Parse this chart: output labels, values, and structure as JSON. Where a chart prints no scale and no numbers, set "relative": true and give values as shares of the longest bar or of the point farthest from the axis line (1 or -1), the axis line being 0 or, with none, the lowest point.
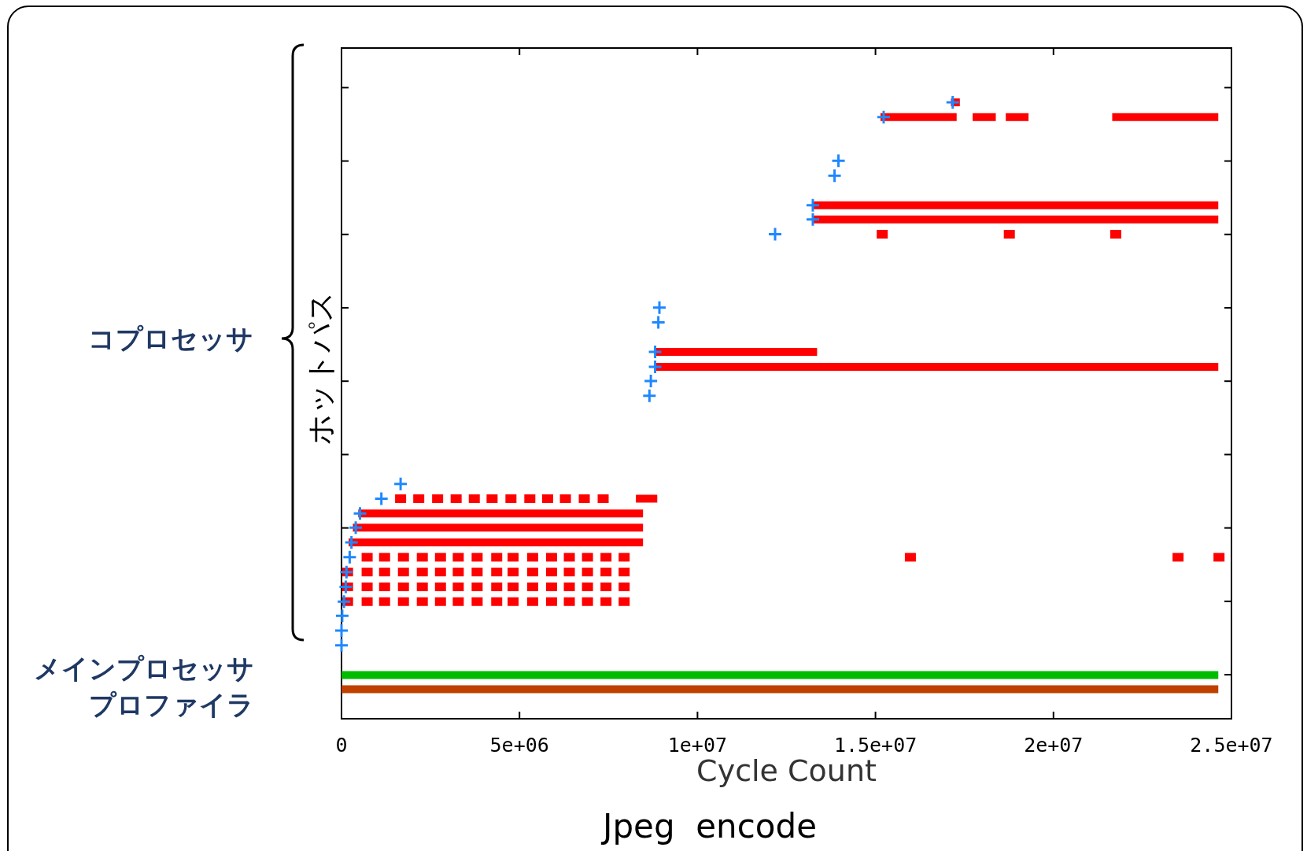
{
  "chart_data": {
    "type": "scatter",
    "xlabel": "Cycle Count",
    "ylabel": "ホットパス",
    "relative": true,
    "xlim": [
      0,
      25000000
    ],
    "xticks": [
      0,
      {
        "value": 5000000,
        "label": "5e+06"
      },
      {
        "value": 10000000,
        "label": "1e+07"
      },
      {
        "value": 15000000,
        "label": "1.5e+07"
      },
      {
        "value": 20000000,
        "label": "2e+07"
      },
      {
        "value": 25000000,
        "label": "2.5e+07"
      }
    ],
    "tick_labels": "x",
    "series": [
      {
        "type": "line",
        "color": "#00bb00",
        "x": [
          0,
          24630000
        ],
        "values": [
          0.071,
          0.071
        ]
      },
      {
        "type": "line",
        "color": "#c04000",
        "x": [
          0,
          24630000
        ],
        "values": [
          0.048,
          0.048
        ]
      },
      {
        "type": "line",
        "color": "#ff0000",
        "x": [
          200000,
          8470000
        ],
        "values": [
          0.286,
          0.286
        ]
      },
      {
        "type": "line",
        "color": "#ff0000",
        "x": [
          320000,
          8470000
        ],
        "values": [
          0.31,
          0.31
        ]
      },
      {
        "type": "line",
        "color": "#ff0000",
        "x": [
          470000,
          8470000
        ],
        "values": [
          0.333,
          0.333
        ]
      },
      {
        "type": "line",
        "color": "#ff0000",
        "x": [
          8270000,
          8870000
        ],
        "values": [
          0.357,
          0.357
        ]
      },
      {
        "type": "line",
        "color": "#ff0000",
        "x": [
          8800000,
          24630000
        ],
        "values": [
          0.571,
          0.571
        ]
      },
      {
        "type": "line",
        "color": "#ff0000",
        "x": [
          8810000,
          13360000
        ],
        "values": [
          0.595,
          0.595
        ]
      },
      {
        "type": "line",
        "color": "#ff0000",
        "x": [
          13240000,
          24630000
        ],
        "values": [
          0.81,
          0.81
        ]
      },
      {
        "type": "line",
        "color": "#ff0000",
        "x": [
          13240000,
          24630000
        ],
        "values": [
          0.833,
          0.833
        ]
      },
      {
        "type": "line",
        "color": "#ff0000",
        "x": [
          15140000,
          17280000
        ],
        "values": [
          0.976,
          0.976
        ]
      },
      {
        "type": "line",
        "color": "#ff0000",
        "x": [
          17730000,
          18380000
        ],
        "values": [
          0.976,
          0.976
        ]
      },
      {
        "type": "line",
        "color": "#ff0000",
        "x": [
          18660000,
          19300000
        ],
        "values": [
          0.976,
          0.976
        ]
      },
      {
        "type": "line",
        "color": "#ff0000",
        "x": [
          21650000,
          24630000
        ],
        "values": [
          0.976,
          0.976
        ]
      },
      {
        "type": "line",
        "color": "#ff0000",
        "x": [
          17120000,
          17370000
        ],
        "values": [
          1,
          1
        ]
      },
      {
        "type": "scatter",
        "marker": "square",
        "color": "#ff0000",
        "x": [
          170000,
          720000,
          1210000,
          1740000,
          2270000,
          2780000,
          3280000,
          3810000,
          4360000,
          4820000,
          5370000,
          5900000,
          6400000,
          6910000,
          7430000,
          7940000,
          170000,
          720000,
          1210000,
          1740000,
          2270000,
          2780000,
          3280000,
          3810000,
          4360000,
          4820000,
          5370000,
          5900000,
          6400000,
          6910000,
          7430000,
          7940000,
          170000,
          720000,
          1210000,
          1740000,
          2270000,
          2780000,
          3280000,
          3810000,
          4360000,
          4820000,
          5370000,
          5900000,
          6400000,
          6910000,
          7430000,
          7940000,
          720000,
          1210000,
          1740000,
          2270000,
          2780000,
          3280000,
          3810000,
          4360000,
          4820000,
          5370000,
          5900000,
          6400000,
          6910000,
          7430000,
          7940000,
          15980000,
          23500000,
          24650000,
          1660000,
          2170000,
          2700000,
          3220000,
          3730000,
          4230000,
          4760000,
          5290000,
          5790000,
          6290000,
          6820000,
          7350000,
          15190000,
          18760000,
          21750000
        ],
        "values": [
          0.19,
          0.19,
          0.19,
          0.19,
          0.19,
          0.19,
          0.19,
          0.19,
          0.19,
          0.19,
          0.19,
          0.19,
          0.19,
          0.19,
          0.19,
          0.19,
          0.214,
          0.214,
          0.214,
          0.214,
          0.214,
          0.214,
          0.214,
          0.214,
          0.214,
          0.214,
          0.214,
          0.214,
          0.214,
          0.214,
          0.214,
          0.214,
          0.238,
          0.238,
          0.238,
          0.238,
          0.238,
          0.238,
          0.238,
          0.238,
          0.238,
          0.238,
          0.238,
          0.238,
          0.238,
          0.238,
          0.238,
          0.238,
          0.262,
          0.262,
          0.262,
          0.262,
          0.262,
          0.262,
          0.262,
          0.262,
          0.262,
          0.262,
          0.262,
          0.262,
          0.262,
          0.262,
          0.262,
          0.262,
          0.262,
          0.262,
          0.357,
          0.357,
          0.357,
          0.357,
          0.357,
          0.357,
          0.357,
          0.357,
          0.357,
          0.357,
          0.357,
          0.357,
          0.786,
          0.786,
          0.786
        ]
      },
      {
        "type": "scatter",
        "marker": "cross",
        "color": "#1e88ff",
        "x": [
          0,
          0,
          20000,
          70000,
          120000,
          140000,
          230000,
          280000,
          400000,
          520000,
          1120000,
          1660000,
          8650000,
          8690000,
          8810000,
          8810000,
          8900000,
          8930000,
          12180000,
          13240000,
          13240000,
          13850000,
          13960000,
          15230000,
          17170000
        ],
        "values": [
          0.119,
          0.143,
          0.167,
          0.19,
          0.214,
          0.238,
          0.262,
          0.286,
          0.31,
          0.333,
          0.357,
          0.381,
          0.524,
          0.548,
          0.571,
          0.595,
          0.643,
          0.667,
          0.786,
          0.81,
          0.833,
          0.881,
          0.905,
          0.976,
          1
        ]
      }
    ],
    "annotations": [
      "コプロセッサ",
      "メインプロセッサプロファイラ",
      "Jpeg  encode"
    ]
  }
}
